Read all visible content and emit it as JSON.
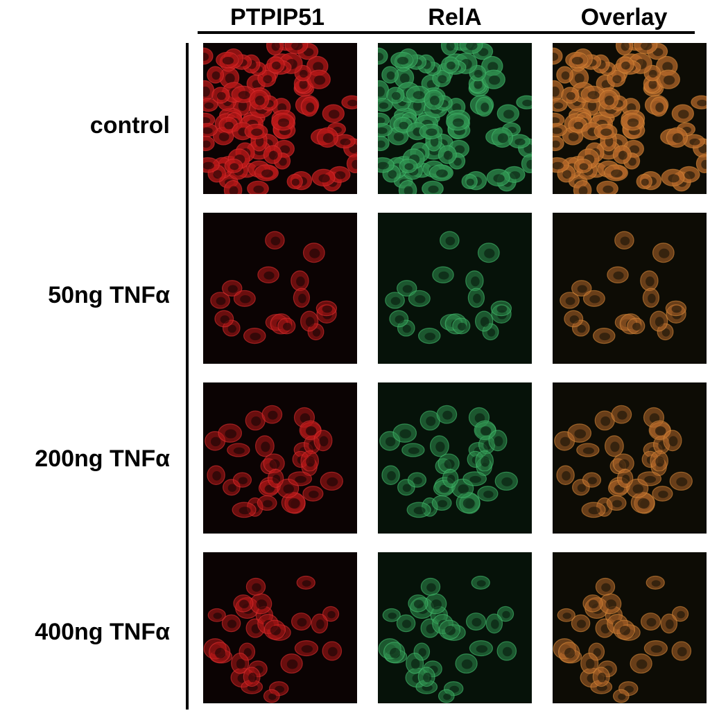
{
  "column_headers": [
    "PTPIP51",
    "RelA",
    "Overlay"
  ],
  "row_labels": [
    "control",
    "50ng TNFα",
    "200ng TNFα",
    "400ng TNFα"
  ]
}
